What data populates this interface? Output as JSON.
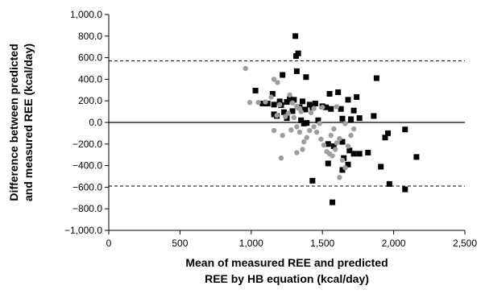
{
  "chart_data": {
    "type": "scatter",
    "xlabel": [
      "Mean of measured REE and predicted",
      "REE by HB equation (kcal/day)"
    ],
    "ylabel": [
      "Difference between predicted",
      "and measured REE (kcal/day)"
    ],
    "xlim": [
      0,
      2500
    ],
    "ylim": [
      -1000,
      1000
    ],
    "x_ticks": [
      {
        "value": 0,
        "label": "0"
      },
      {
        "value": 500,
        "label": "500"
      },
      {
        "value": 1000,
        "label": "1,000"
      },
      {
        "value": 1500,
        "label": "1,500"
      },
      {
        "value": 2000,
        "label": "2,000"
      },
      {
        "value": 2500,
        "label": "2,500"
      }
    ],
    "y_ticks": [
      {
        "value": 1000,
        "label": "1,000.0"
      },
      {
        "value": 800,
        "label": "800.0"
      },
      {
        "value": 600,
        "label": "600.0"
      },
      {
        "value": 400,
        "label": "400.0"
      },
      {
        "value": 200,
        "label": "200.0"
      },
      {
        "value": 0,
        "label": "0.0"
      },
      {
        "value": -200,
        "label": "−200.0"
      },
      {
        "value": -400,
        "label": "−400.0"
      },
      {
        "value": -600,
        "label": "−600.0"
      },
      {
        "value": -800,
        "label": "−800.0"
      },
      {
        "value": -1000,
        "label": "−1,000.0"
      }
    ],
    "reference_lines": [
      {
        "y": 0,
        "style": "solid"
      },
      {
        "y": 570,
        "style": "dashed"
      },
      {
        "y": -590,
        "style": "dashed"
      }
    ],
    "grid": false,
    "series": [
      {
        "marker": "square",
        "color": "#000000",
        "points": [
          [
            1310,
            800
          ],
          [
            1330,
            640
          ],
          [
            1315,
            615
          ],
          [
            1320,
            475
          ],
          [
            1220,
            440
          ],
          [
            1385,
            420
          ],
          [
            1880,
            410
          ],
          [
            1030,
            295
          ],
          [
            1150,
            265
          ],
          [
            1550,
            265
          ],
          [
            1610,
            280
          ],
          [
            1740,
            235
          ],
          [
            1680,
            210
          ],
          [
            1270,
            215
          ],
          [
            1300,
            210
          ],
          [
            1250,
            190
          ],
          [
            1200,
            195
          ],
          [
            1360,
            195
          ],
          [
            1080,
            175
          ],
          [
            1115,
            175
          ],
          [
            1160,
            165
          ],
          [
            1210,
            160
          ],
          [
            1410,
            165
          ],
          [
            1450,
            175
          ],
          [
            1500,
            150
          ],
          [
            1525,
            140
          ],
          [
            1560,
            125
          ],
          [
            1630,
            125
          ],
          [
            1720,
            110
          ],
          [
            1340,
            140
          ],
          [
            1380,
            120
          ],
          [
            1430,
            140
          ],
          [
            1290,
            105
          ],
          [
            1230,
            95
          ],
          [
            1160,
            75
          ],
          [
            1180,
            60
          ],
          [
            1250,
            40
          ],
          [
            1350,
            20
          ],
          [
            1470,
            20
          ],
          [
            1640,
            35
          ],
          [
            1700,
            30
          ],
          [
            1760,
            40
          ],
          [
            1860,
            60
          ],
          [
            1370,
            -10
          ],
          [
            1390,
            -5
          ],
          [
            1540,
            -200
          ],
          [
            1580,
            -220
          ],
          [
            1640,
            -180
          ],
          [
            1690,
            -260
          ],
          [
            1720,
            -290
          ],
          [
            1760,
            -290
          ],
          [
            1820,
            -280
          ],
          [
            1960,
            -100
          ],
          [
            1940,
            -140
          ],
          [
            2080,
            -65
          ],
          [
            1650,
            -330
          ],
          [
            1680,
            -390
          ],
          [
            1640,
            -440
          ],
          [
            1540,
            -380
          ],
          [
            1430,
            -540
          ],
          [
            1910,
            -410
          ],
          [
            2160,
            -320
          ],
          [
            1970,
            -570
          ],
          [
            2080,
            -620
          ],
          [
            1570,
            -740
          ]
        ]
      },
      {
        "marker": "circle",
        "color": "#9e9e9e",
        "points": [
          [
            960,
            500
          ],
          [
            990,
            185
          ],
          [
            1050,
            185
          ],
          [
            1100,
            190
          ],
          [
            1160,
            400
          ],
          [
            1185,
            370
          ],
          [
            1200,
            165
          ],
          [
            1140,
            235
          ],
          [
            1270,
            255
          ],
          [
            1290,
            180
          ],
          [
            1320,
            150
          ],
          [
            1340,
            130
          ],
          [
            1350,
            100
          ],
          [
            1260,
            85
          ],
          [
            1240,
            55
          ],
          [
            1300,
            45
          ],
          [
            1180,
            65
          ],
          [
            1160,
            -75
          ],
          [
            1220,
            -120
          ],
          [
            1280,
            -70
          ],
          [
            1320,
            -40
          ],
          [
            1340,
            -90
          ],
          [
            1370,
            -180
          ],
          [
            1390,
            -140
          ],
          [
            1410,
            -75
          ],
          [
            1440,
            -40
          ],
          [
            1460,
            -90
          ],
          [
            1480,
            -10
          ],
          [
            1490,
            -155
          ],
          [
            1510,
            -210
          ],
          [
            1530,
            -270
          ],
          [
            1550,
            -290
          ],
          [
            1570,
            -310
          ],
          [
            1590,
            -250
          ],
          [
            1600,
            -190
          ],
          [
            1620,
            -150
          ],
          [
            1640,
            -350
          ],
          [
            1660,
            -420
          ],
          [
            1620,
            -510
          ],
          [
            1680,
            -220
          ],
          [
            1700,
            -120
          ],
          [
            1720,
            -60
          ],
          [
            1580,
            -60
          ],
          [
            1560,
            -120
          ],
          [
            1660,
            -10
          ],
          [
            1210,
            -330
          ],
          [
            1320,
            -280
          ],
          [
            1360,
            -250
          ],
          [
            1600,
            145
          ],
          [
            1500,
            140
          ],
          [
            1440,
            130
          ],
          [
            1420,
            90
          ]
        ]
      }
    ]
  }
}
